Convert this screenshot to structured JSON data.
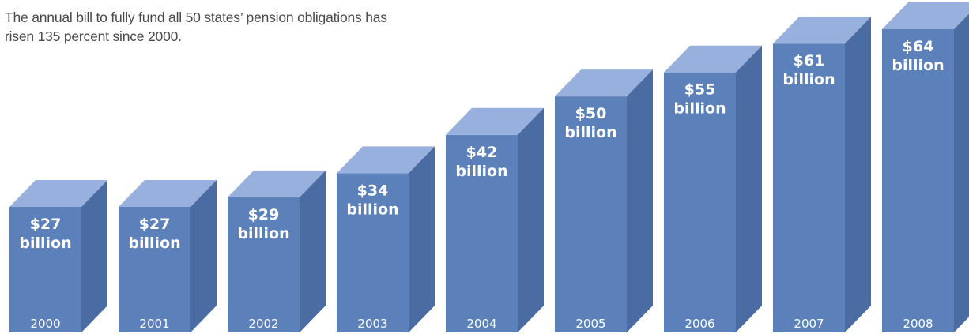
{
  "subtitle": "The annual bill to fully fund all 50 states’ pension obligations has risen 135 percent since 2000.",
  "colors": {
    "front": "#5b80ba",
    "top": "#98b0dd",
    "side": "#4a6ca3",
    "label": "#ffffff",
    "text": "#4a4a4a"
  },
  "chart_data": {
    "type": "bar",
    "title": "",
    "xlabel": "",
    "ylabel": "",
    "unit": "billion",
    "ylim": [
      0,
      64
    ],
    "grid": false,
    "categories": [
      "2000",
      "2001",
      "2002",
      "2003",
      "2004",
      "2005",
      "2006",
      "2007",
      "2008"
    ],
    "values": [
      27,
      27,
      29,
      34,
      42,
      50,
      55,
      61,
      64
    ],
    "value_labels": [
      [
        "$27",
        "billion"
      ],
      [
        "$27",
        "billion"
      ],
      [
        "$29",
        "billion"
      ],
      [
        "$34",
        "billion"
      ],
      [
        "$42",
        "billion"
      ],
      [
        "$50",
        "billion"
      ],
      [
        "$55",
        "billion"
      ],
      [
        "$61",
        "billion"
      ],
      [
        "$64",
        "billion"
      ]
    ]
  }
}
